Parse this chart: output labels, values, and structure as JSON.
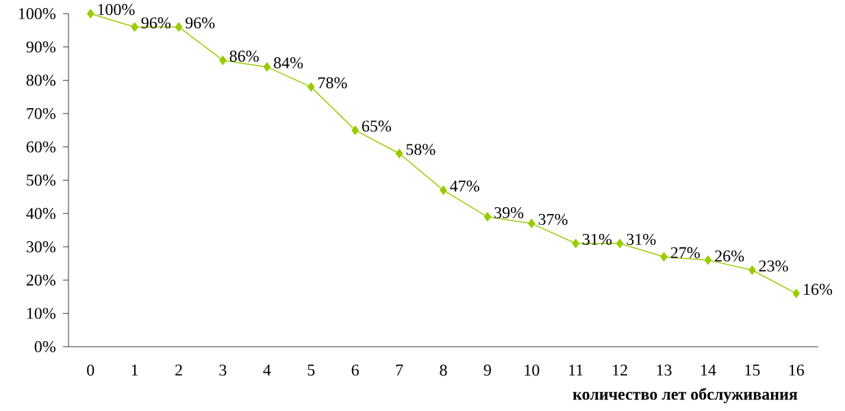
{
  "chart_data": {
    "type": "line",
    "xlabel": "количество лет обслуживания",
    "categories": [
      "0",
      "1",
      "2",
      "3",
      "4",
      "5",
      "6",
      "7",
      "8",
      "9",
      "10",
      "11",
      "12",
      "13",
      "14",
      "15",
      "16"
    ],
    "series": [
      {
        "color": "#99cc00",
        "values": [
          100,
          96,
          96,
          86,
          84,
          78,
          65,
          58,
          47,
          39,
          37,
          31,
          31,
          27,
          26,
          23,
          16
        ],
        "value_labels": [
          "100%",
          "96%",
          "96%",
          "86%",
          "84%",
          "78%",
          "65%",
          "58%",
          "47%",
          "39%",
          "37%",
          "31%",
          "31%",
          "27%",
          "26%",
          "23%",
          "16%"
        ]
      }
    ],
    "ylim": [
      0,
      100
    ],
    "yticks": [
      {
        "value": 0,
        "label": "0%"
      },
      {
        "value": 10,
        "label": "10%"
      },
      {
        "value": 20,
        "label": "20%"
      },
      {
        "value": 30,
        "label": "30%"
      },
      {
        "value": 40,
        "label": "40%"
      },
      {
        "value": 50,
        "label": "50%"
      },
      {
        "value": 60,
        "label": "60%"
      },
      {
        "value": 70,
        "label": "70%"
      },
      {
        "value": 80,
        "label": "80%"
      },
      {
        "value": 90,
        "label": "90%"
      },
      {
        "value": 100,
        "label": "100%"
      }
    ],
    "marker": "diamond",
    "line_style": "solid",
    "grid": false
  }
}
